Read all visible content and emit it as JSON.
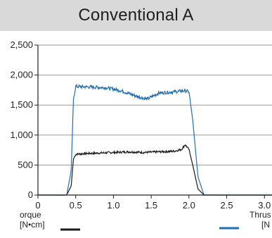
{
  "chart_data": {
    "type": "line",
    "title": "Conventional A",
    "xlim": [
      0,
      3.1
    ],
    "ylim": [
      0,
      2500
    ],
    "x_ticks": [
      "0",
      "0.5",
      "1.0",
      "1.5",
      "2.0",
      "2.5",
      "3.0"
    ],
    "x_tick_values": [
      0,
      0.5,
      1.0,
      1.5,
      2.0,
      2.5,
      3.0
    ],
    "y_ticks": [
      "0",
      "500",
      "1,000",
      "1,500",
      "2,000",
      "2,500"
    ],
    "y_tick_values": [
      0,
      500,
      1000,
      1500,
      2000,
      2500
    ],
    "grid": "horizontal",
    "series": [
      {
        "name": "Torque",
        "legend_label": "orque",
        "unit": "[N•cm]",
        "color": "#1a1a1a",
        "x": [
          0,
          0.38,
          0.44,
          0.47,
          0.5,
          0.6,
          0.8,
          1.0,
          1.2,
          1.4,
          1.6,
          1.8,
          1.9,
          1.95,
          2.0,
          2.05,
          2.12,
          2.2,
          2.5,
          3.1
        ],
        "y": [
          0,
          0,
          150,
          600,
          680,
          690,
          700,
          710,
          720,
          710,
          720,
          730,
          760,
          840,
          760,
          500,
          100,
          0,
          0,
          0
        ]
      },
      {
        "name": "Thrust",
        "legend_label": "Thrus",
        "unit": "[N",
        "color": "#1f6fb5",
        "x": [
          0,
          0.38,
          0.44,
          0.47,
          0.5,
          0.7,
          0.9,
          1.1,
          1.3,
          1.45,
          1.6,
          1.8,
          1.95,
          2.0,
          2.05,
          2.12,
          2.2,
          2.5,
          3.1
        ],
        "y": [
          0,
          0,
          400,
          1600,
          1810,
          1800,
          1790,
          1740,
          1650,
          1600,
          1700,
          1720,
          1740,
          1720,
          1250,
          300,
          0,
          0,
          0
        ]
      }
    ]
  }
}
